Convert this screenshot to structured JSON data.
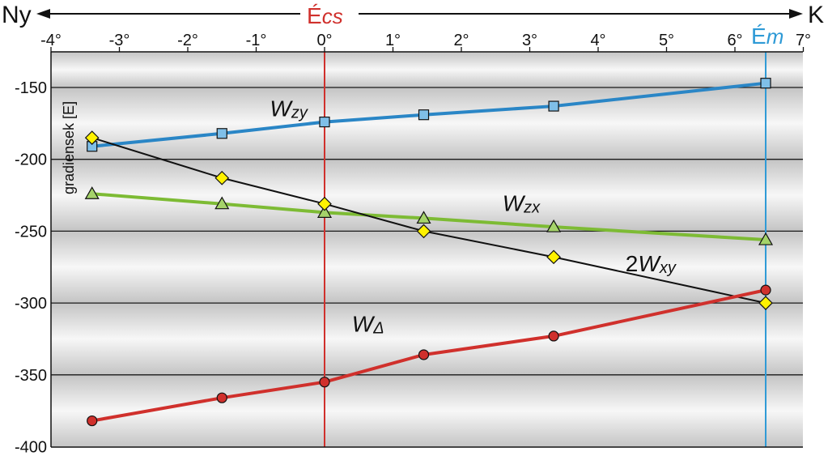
{
  "chart_data": {
    "type": "line",
    "direction_labels": {
      "left": "Ny",
      "right": "K"
    },
    "ylabel": "gradiensek [E]",
    "x_ticks": [
      "-4°",
      "-3°",
      "-2°",
      "-1°",
      "0°",
      "1°",
      "2°",
      "3°",
      "4°",
      "5°",
      "6°",
      "7°"
    ],
    "y_ticks": [
      "-150",
      "-200",
      "-250",
      "-300",
      "-350",
      "-400"
    ],
    "xlim": [
      -4,
      7
    ],
    "ylim": [
      -400,
      -125
    ],
    "grid": true,
    "markers": [
      {
        "main": "É",
        "sub": "cs",
        "x": 0,
        "color": "#d0302c"
      },
      {
        "main": "É",
        "sub": "m",
        "x": 6.45,
        "color": "#2e9ad6"
      }
    ],
    "series": [
      {
        "name": "Wzy",
        "main": "W",
        "sub": "zy",
        "prefix": "",
        "color": "#2a86c6",
        "fill": "#7fbfe8",
        "marker": "square",
        "width": 4,
        "x": [
          -3.4,
          -1.5,
          0,
          1.45,
          3.35,
          6.45
        ],
        "values": [
          -191,
          -182,
          -174,
          -169,
          -163,
          -147
        ],
        "label_at": [
          -0.8,
          -170
        ]
      },
      {
        "name": "Wzx",
        "main": "W",
        "sub": "zx",
        "prefix": "",
        "color": "#7dbb34",
        "fill": "#a5d36a",
        "marker": "triangle",
        "width": 4,
        "x": [
          -3.4,
          -1.5,
          0,
          1.45,
          3.35,
          6.45
        ],
        "values": [
          -224,
          -231,
          -237,
          -241,
          -247,
          -256
        ],
        "label_at": [
          2.6,
          -236
        ]
      },
      {
        "name": "2Wxy",
        "main": "W",
        "sub": "xy",
        "prefix": "2",
        "color": "#111111",
        "fill": "#fff200",
        "marker": "diamond",
        "width": 2,
        "x": [
          -3.4,
          -1.5,
          0,
          1.45,
          3.35,
          6.45
        ],
        "values": [
          -185,
          -213,
          -231,
          -250,
          -268,
          -300
        ],
        "label_at": [
          4.4,
          -278
        ]
      },
      {
        "name": "WΔ",
        "main": "W",
        "sub": "Δ",
        "prefix": "",
        "color": "#d0302c",
        "fill": "#d0302c",
        "marker": "circle",
        "width": 4,
        "x": [
          -3.4,
          -1.5,
          0,
          1.45,
          3.35,
          6.45
        ],
        "values": [
          -382,
          -366,
          -355,
          -336,
          -323,
          -291
        ],
        "label_at": [
          0.4,
          -320
        ]
      }
    ]
  }
}
